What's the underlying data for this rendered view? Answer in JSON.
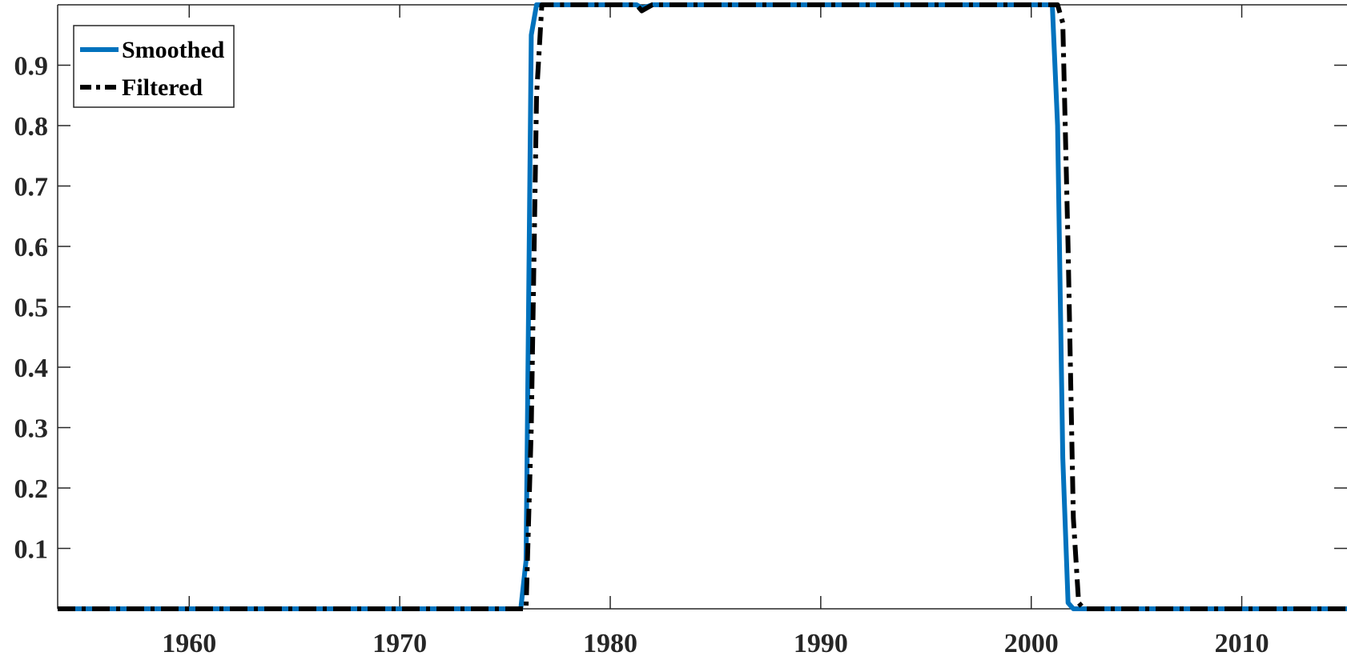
{
  "chart_data": {
    "type": "line",
    "title": "",
    "xlabel": "",
    "ylabel": "",
    "xlim": [
      1953.75,
      2015.0
    ],
    "ylim": [
      0.0,
      1.0
    ],
    "xticks": [
      1960,
      1970,
      1980,
      1990,
      2000,
      2010
    ],
    "yticks": [
      0.1,
      0.2,
      0.3,
      0.4,
      0.5,
      0.6,
      0.7,
      0.8,
      0.9
    ],
    "xtick_labels": [
      "1960",
      "1970",
      "1980",
      "1990",
      "2000",
      "2010"
    ],
    "ytick_labels": [
      "0.1",
      "0.2",
      "0.3",
      "0.4",
      "0.5",
      "0.6",
      "0.7",
      "0.8",
      "0.9"
    ],
    "grid": false,
    "legend_position": "top-left",
    "series": [
      {
        "name": "Smoothed",
        "color": "#0072BD",
        "style": "solid",
        "x": [
          1953.75,
          1975.75,
          1976.0,
          1976.25,
          1976.5,
          1981.25,
          1981.5,
          1981.75,
          1982.0,
          2001.0,
          2001.25,
          2001.5,
          2001.75,
          2002.0,
          2002.25,
          2015.0
        ],
        "y": [
          0.0,
          0.0,
          0.08,
          0.95,
          1.0,
          1.0,
          0.995,
          0.997,
          1.0,
          1.0,
          0.8,
          0.25,
          0.01,
          0.0,
          0.0,
          0.0
        ]
      },
      {
        "name": "Filtered",
        "color": "#000000",
        "style": "dash-dot",
        "x": [
          1953.75,
          1976.0,
          1976.25,
          1976.5,
          1976.75,
          1981.25,
          1981.5,
          1981.75,
          1982.0,
          2001.25,
          2001.5,
          2001.75,
          2002.0,
          2002.25,
          2002.5,
          2015.0
        ],
        "y": [
          0.0,
          0.0,
          0.3,
          0.85,
          1.0,
          1.0,
          0.99,
          0.995,
          1.0,
          1.0,
          0.97,
          0.6,
          0.15,
          0.01,
          0.0,
          0.0
        ]
      }
    ]
  }
}
